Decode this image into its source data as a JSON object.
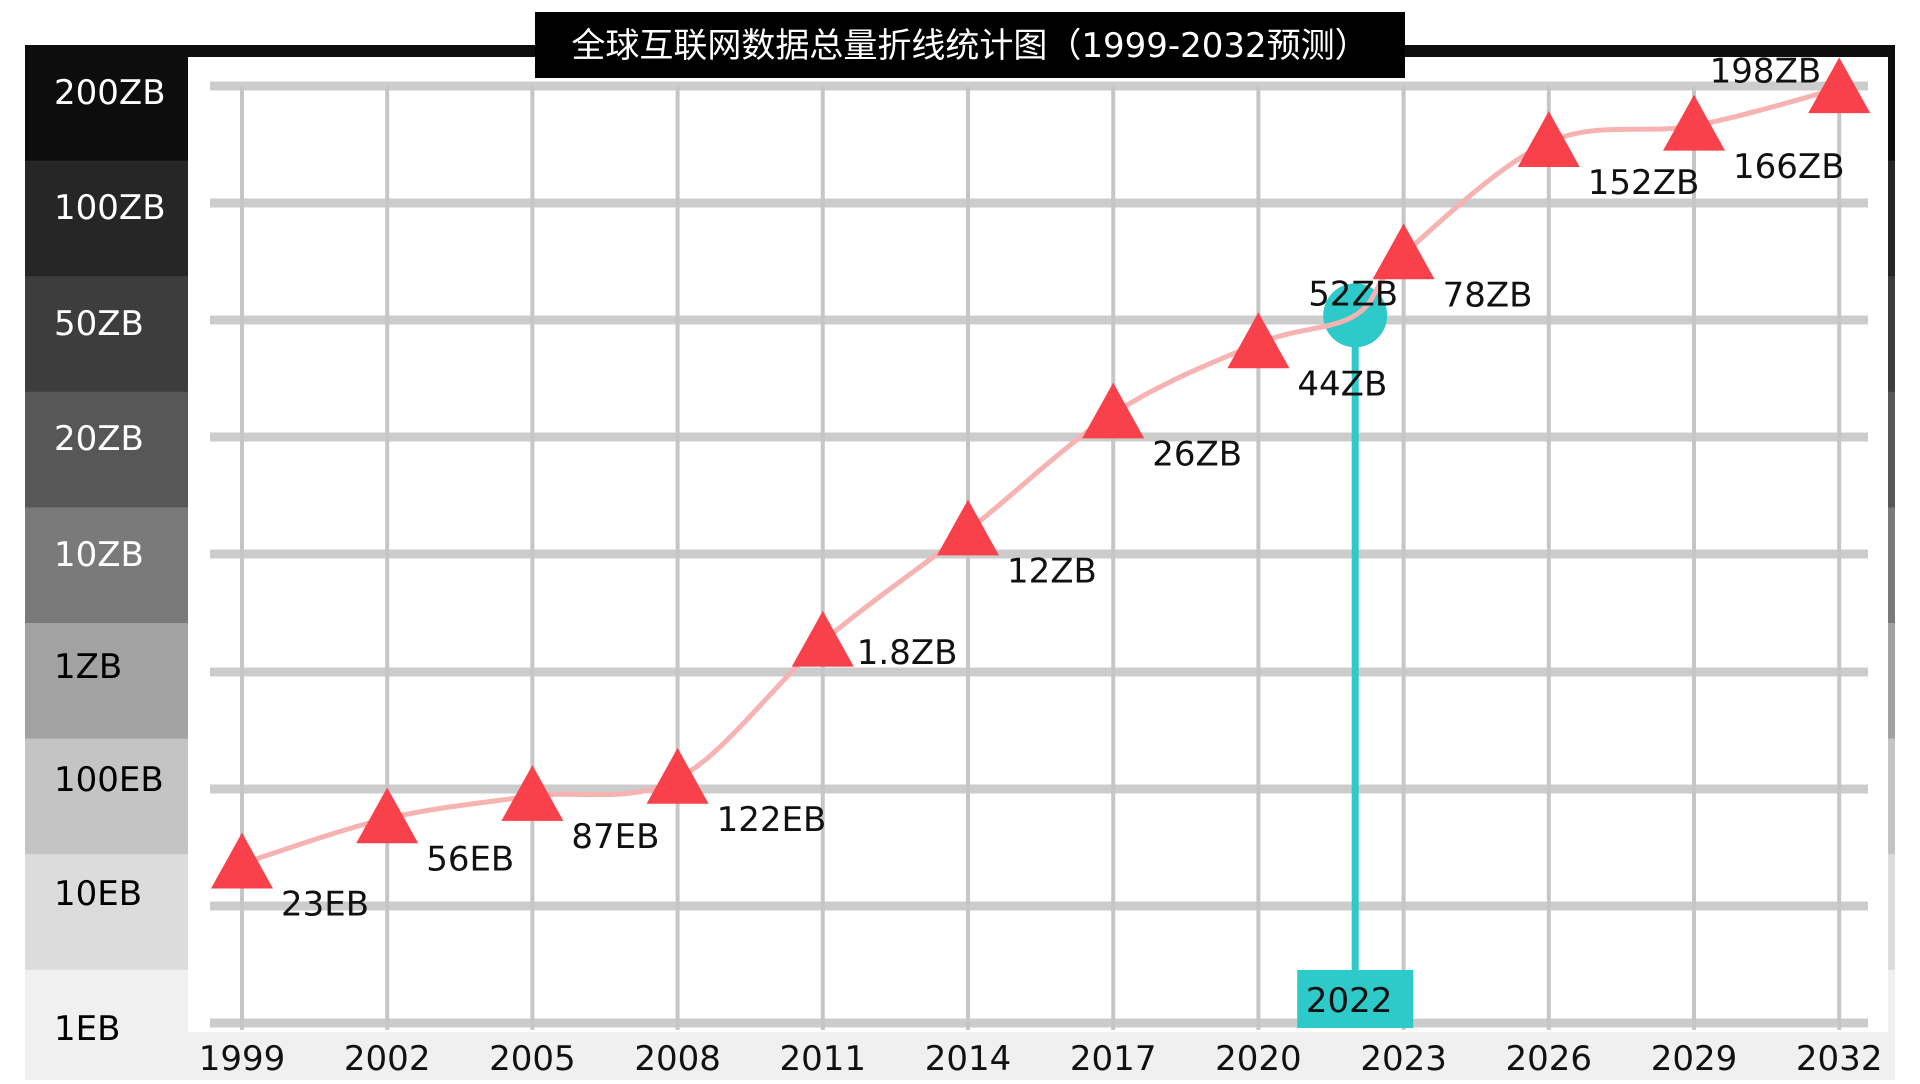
{
  "chart_data": {
    "type": "line",
    "title": "全球互联网数据总量折线统计图（1999-2032预测）",
    "y_scale": "categorical-log",
    "y_ticks": [
      "200ZB",
      "100ZB",
      "50ZB",
      "20ZB",
      "10ZB",
      "1ZB",
      "100EB",
      "10EB",
      "1EB"
    ],
    "x_ticks": [
      "1999",
      "2002",
      "2005",
      "2008",
      "2011",
      "2014",
      "2017",
      "2020",
      "2023",
      "2026",
      "2029",
      "2032"
    ],
    "series": [
      {
        "points": [
          {
            "year": 1999,
            "label": "23EB"
          },
          {
            "year": 2002,
            "label": "56EB"
          },
          {
            "year": 2005,
            "label": "87EB"
          },
          {
            "year": 2008,
            "label": "122EB"
          },
          {
            "year": 2011,
            "label": "1.8ZB"
          },
          {
            "year": 2014,
            "label": "12ZB"
          },
          {
            "year": 2017,
            "label": "26ZB"
          },
          {
            "year": 2020,
            "label": "44ZB"
          },
          {
            "year": 2023,
            "label": "78ZB"
          },
          {
            "year": 2026,
            "label": "152ZB"
          },
          {
            "year": 2029,
            "label": "166ZB"
          },
          {
            "year": 2032,
            "label": "198ZB"
          }
        ]
      }
    ],
    "highlight": {
      "year": 2022,
      "year_label": "2022",
      "label": "52ZB"
    },
    "colors": {
      "line": "#f7b2b2",
      "marker": "#f8414a",
      "highlight": "#2ec9c9",
      "title_bg": "#000000",
      "grid": "#cccccc"
    },
    "band_colors": [
      "#0d0d0d",
      "#262626",
      "#3d3d3d",
      "#575757",
      "#7a7a7a",
      "#a2a2a2",
      "#c4c4c4",
      "#dcdcdc",
      "#f0f0f0"
    ]
  }
}
